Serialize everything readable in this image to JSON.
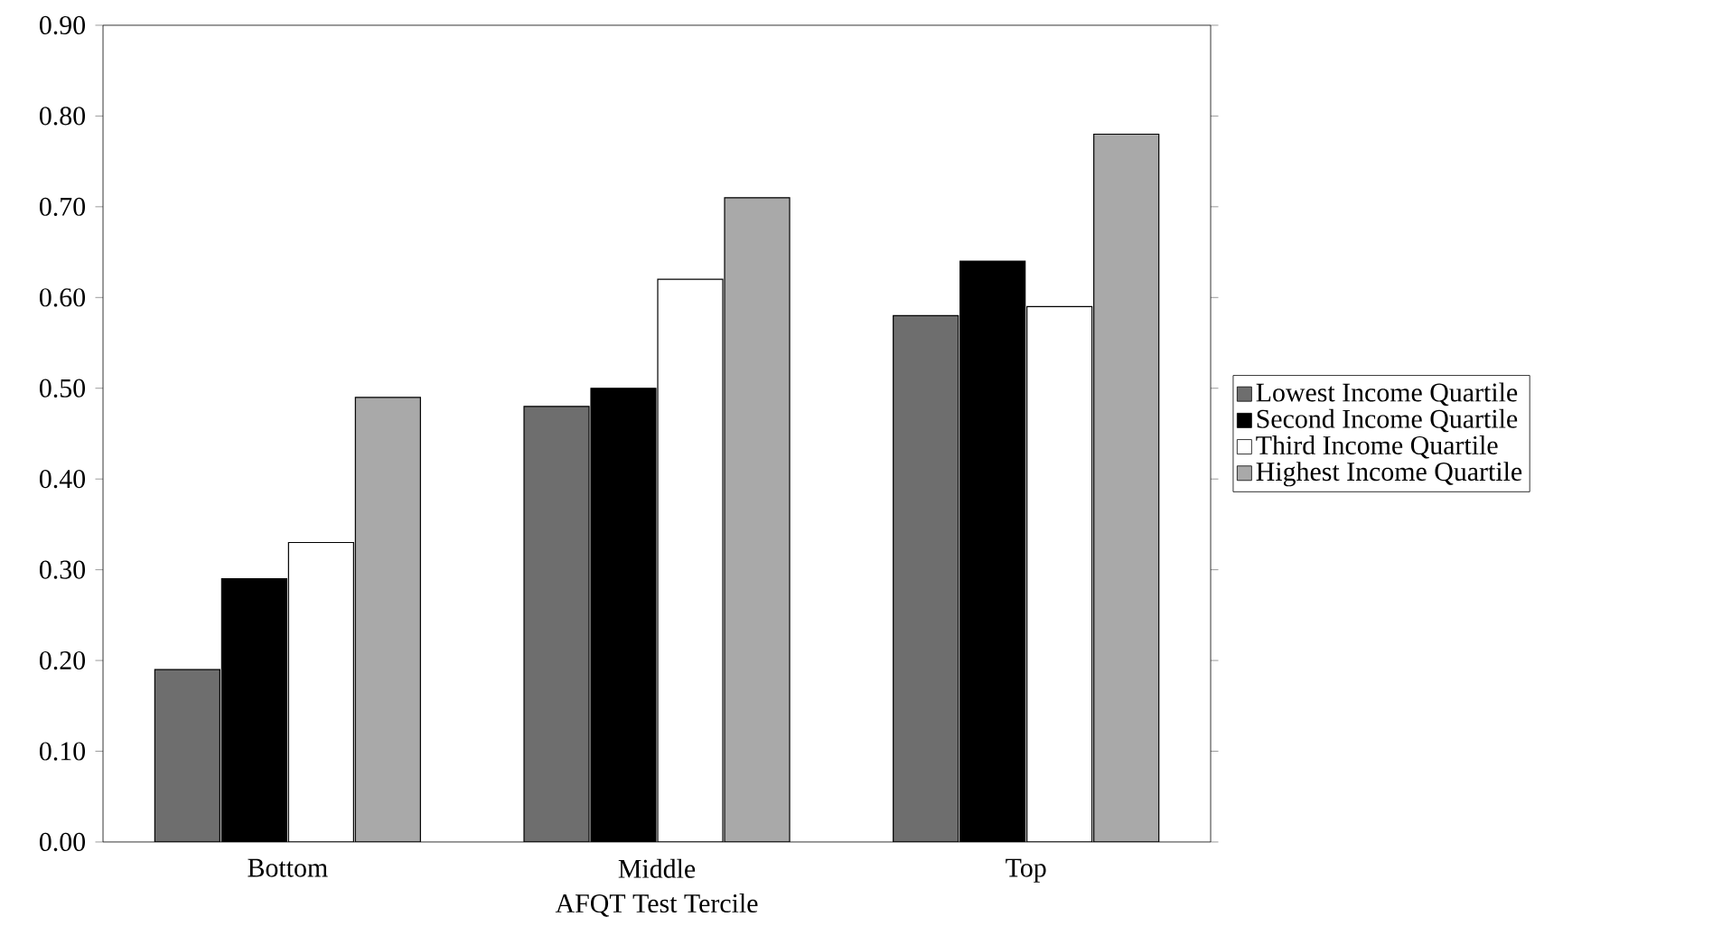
{
  "chart_data": {
    "type": "bar",
    "xlabel": "AFQT Test Tercile",
    "categories": [
      "Bottom",
      "Middle",
      "Top"
    ],
    "series": [
      {
        "name": "Lowest Income Quartile",
        "color": "#6e6e6e",
        "values": [
          0.19,
          0.48,
          0.58
        ]
      },
      {
        "name": "Second Income Quartile",
        "color": "#000000",
        "values": [
          0.29,
          0.5,
          0.64
        ]
      },
      {
        "name": "Third Income Quartile",
        "color": "#ffffff",
        "values": [
          0.33,
          0.62,
          0.59
        ]
      },
      {
        "name": "Highest Income Quartile",
        "color": "#a9a9a9",
        "values": [
          0.49,
          0.71,
          0.78
        ]
      }
    ],
    "ylim": [
      0,
      0.9
    ],
    "yticks": [
      {
        "value": 0,
        "label": "0.00"
      },
      {
        "value": 0.1,
        "label": "0.10"
      },
      {
        "value": 0.2,
        "label": "0.20"
      },
      {
        "value": 0.3,
        "label": "0.30"
      },
      {
        "value": 0.4,
        "label": "0.40"
      },
      {
        "value": 0.5,
        "label": "0.50"
      },
      {
        "value": 0.6,
        "label": "0.60"
      },
      {
        "value": 0.7,
        "label": "0.70"
      },
      {
        "value": 0.8,
        "label": "0.80"
      },
      {
        "value": 0.9,
        "label": "0.90"
      }
    ],
    "legend": "right",
    "grid": false
  }
}
